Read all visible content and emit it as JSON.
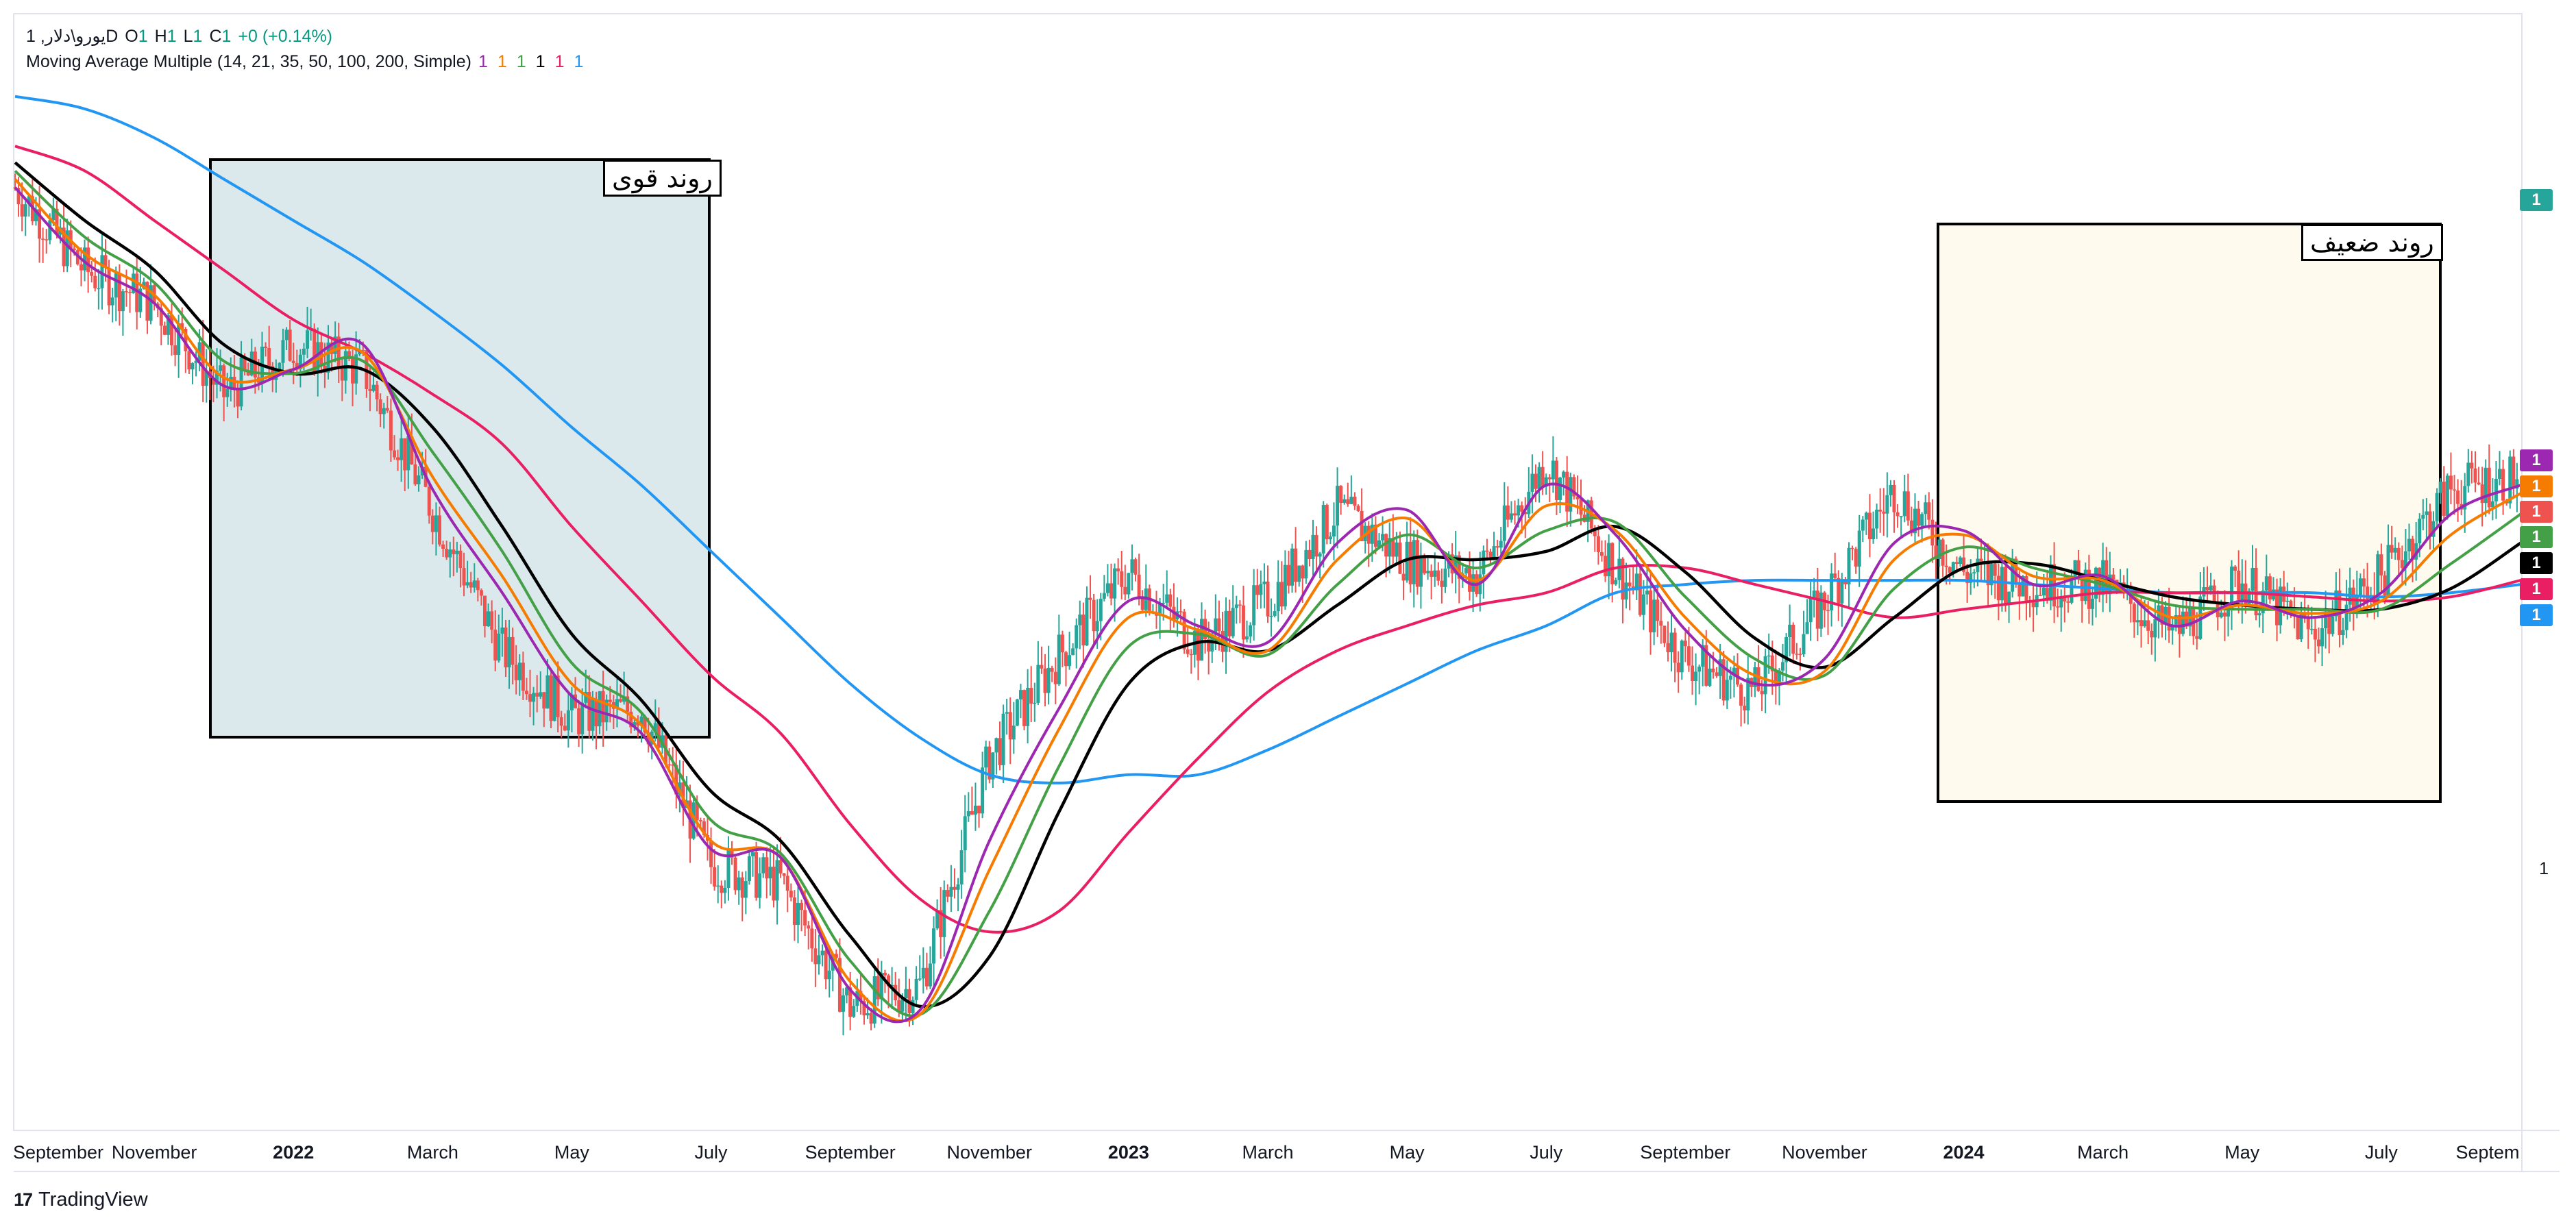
{
  "legend": {
    "symbol": "1 ,یورو\\دلارD",
    "o_label": "O",
    "o_value": "1",
    "h_label": "H",
    "h_value": "1",
    "l_label": "L",
    "l_value": "1",
    "c_label": "C",
    "c_value": "1",
    "change": "+0 (+0.14%)",
    "indicator": "Moving Average Multiple (14, 21, 35, 50, 100, 200, Simple)",
    "indicator_values": [
      {
        "text": "1",
        "color": "#9c27b0"
      },
      {
        "text": "1",
        "color": "#f57c00"
      },
      {
        "text": "1",
        "color": "#43a047"
      },
      {
        "text": "1",
        "color": "#000000"
      },
      {
        "text": "1",
        "color": "#e91e63"
      },
      {
        "text": "1",
        "color": "#2196f3"
      }
    ]
  },
  "annotations": {
    "strong_trend": "روند قوی",
    "weak_trend": "روند ضعیف"
  },
  "price_scale": {
    "labels": [
      {
        "text": "1",
        "color": "#26a69a"
      },
      {
        "text": "1",
        "color": "#9c27b0"
      },
      {
        "text": "1",
        "color": "#f57c00"
      },
      {
        "text": "1",
        "color": "#ef5350"
      },
      {
        "text": "1",
        "color": "#43a047"
      },
      {
        "text": "1",
        "color": "#000000"
      },
      {
        "text": "1",
        "color": "#e91e63"
      },
      {
        "text": "1",
        "color": "#2196f3"
      }
    ],
    "plain_label": "1"
  },
  "branding": "TradingView",
  "chart_data": {
    "type": "line",
    "title": "",
    "xlabel": "",
    "ylabel": "",
    "x": [
      "2021-09",
      "2021-10",
      "2021-11",
      "2021-12",
      "2022-01",
      "2022-02",
      "2022-03",
      "2022-04",
      "2022-05",
      "2022-06",
      "2022-07",
      "2022-08",
      "2022-09",
      "2022-10",
      "2022-11",
      "2022-12",
      "2023-01",
      "2023-02",
      "2023-03",
      "2023-04",
      "2023-05",
      "2023-06",
      "2023-07",
      "2023-08",
      "2023-09",
      "2023-10",
      "2023-11",
      "2023-12",
      "2024-01",
      "2024-02",
      "2024-03",
      "2024-04",
      "2024-05",
      "2024-06",
      "2024-07",
      "2024-08",
      "2024-09"
    ],
    "x_tick_labels": [
      {
        "label": "September",
        "date": "2021-09",
        "bold": false
      },
      {
        "label": "November",
        "date": "2021-11",
        "bold": false
      },
      {
        "label": "2022",
        "date": "2022-01",
        "bold": true
      },
      {
        "label": "March",
        "date": "2022-03",
        "bold": false
      },
      {
        "label": "May",
        "date": "2022-05",
        "bold": false
      },
      {
        "label": "July",
        "date": "2022-07",
        "bold": false
      },
      {
        "label": "September",
        "date": "2022-09",
        "bold": false
      },
      {
        "label": "November",
        "date": "2022-11",
        "bold": false
      },
      {
        "label": "2023",
        "date": "2023-01",
        "bold": true
      },
      {
        "label": "March",
        "date": "2023-03",
        "bold": false
      },
      {
        "label": "May",
        "date": "2023-05",
        "bold": false
      },
      {
        "label": "July",
        "date": "2023-07",
        "bold": false
      },
      {
        "label": "September",
        "date": "2023-09",
        "bold": false
      },
      {
        "label": "November",
        "date": "2023-11",
        "bold": false
      },
      {
        "label": "2024",
        "date": "2024-01",
        "bold": true
      },
      {
        "label": "March",
        "date": "2024-03",
        "bold": false
      },
      {
        "label": "May",
        "date": "2024-05",
        "bold": false
      },
      {
        "label": "July",
        "date": "2024-07",
        "bold": false
      },
      {
        "label": "Septem",
        "date": "2024-09",
        "bold": false
      }
    ],
    "series": [
      {
        "period": 14,
        "color": "#9c27b0",
        "values": [
          1.178,
          1.16,
          1.15,
          1.13,
          1.134,
          1.14,
          1.105,
          1.08,
          1.055,
          1.046,
          1.018,
          1.016,
          0.984,
          0.979,
          1.02,
          1.052,
          1.078,
          1.072,
          1.068,
          1.092,
          1.1,
          1.082,
          1.106,
          1.094,
          1.071,
          1.058,
          1.064,
          1.092,
          1.095,
          1.082,
          1.084,
          1.072,
          1.078,
          1.074,
          1.08,
          1.099,
          1.106
        ]
      },
      {
        "period": 21,
        "color": "#f57c00",
        "values": [
          1.18,
          1.162,
          1.152,
          1.132,
          1.134,
          1.138,
          1.108,
          1.084,
          1.058,
          1.048,
          1.02,
          1.016,
          0.986,
          0.978,
          1.013,
          1.047,
          1.074,
          1.071,
          1.066,
          1.088,
          1.098,
          1.083,
          1.101,
          1.095,
          1.074,
          1.06,
          1.061,
          1.088,
          1.094,
          1.084,
          1.083,
          1.074,
          1.077,
          1.075,
          1.078,
          1.094,
          1.104
        ]
      },
      {
        "period": 35,
        "color": "#43a047",
        "values": [
          1.182,
          1.166,
          1.155,
          1.136,
          1.133,
          1.136,
          1.114,
          1.09,
          1.063,
          1.051,
          1.025,
          1.017,
          0.991,
          0.978,
          1.003,
          1.038,
          1.067,
          1.07,
          1.065,
          1.082,
          1.094,
          1.086,
          1.095,
          1.097,
          1.079,
          1.064,
          1.06,
          1.081,
          1.091,
          1.086,
          1.082,
          1.077,
          1.076,
          1.076,
          1.076,
          1.087,
          1.099
        ]
      },
      {
        "period": 50,
        "color": "#000000",
        "values": [
          1.184,
          1.17,
          1.158,
          1.14,
          1.133,
          1.134,
          1.12,
          1.096,
          1.07,
          1.054,
          1.032,
          1.02,
          0.997,
          0.98,
          0.992,
          1.027,
          1.058,
          1.068,
          1.066,
          1.077,
          1.088,
          1.088,
          1.09,
          1.096,
          1.085,
          1.069,
          1.062,
          1.074,
          1.086,
          1.087,
          1.083,
          1.079,
          1.077,
          1.076,
          1.076,
          1.081,
          1.092
        ]
      },
      {
        "period": 100,
        "color": "#e91e63",
        "values": [
          1.188,
          1.182,
          1.17,
          1.158,
          1.146,
          1.138,
          1.128,
          1.116,
          1.096,
          1.078,
          1.06,
          1.046,
          1.024,
          1.006,
          0.998,
          1.003,
          1.022,
          1.04,
          1.056,
          1.066,
          1.072,
          1.077,
          1.08,
          1.086,
          1.086,
          1.082,
          1.078,
          1.074,
          1.076,
          1.078,
          1.08,
          1.08,
          1.08,
          1.079,
          1.078,
          1.079,
          1.083
        ]
      },
      {
        "period": 200,
        "color": "#2196f3",
        "values": [
          1.2,
          1.197,
          1.19,
          1.18,
          1.17,
          1.16,
          1.148,
          1.135,
          1.12,
          1.106,
          1.09,
          1.074,
          1.058,
          1.045,
          1.036,
          1.034,
          1.036,
          1.036,
          1.042,
          1.05,
          1.058,
          1.066,
          1.072,
          1.08,
          1.082,
          1.083,
          1.083,
          1.083,
          1.083,
          1.082,
          1.081,
          1.08,
          1.08,
          1.08,
          1.079,
          1.08,
          1.082
        ]
      }
    ],
    "ylim": [
      0.95,
      1.22
    ],
    "candles_close_approx": [
      1.178,
      1.158,
      1.15,
      1.128,
      1.14,
      1.134,
      1.1,
      1.066,
      1.05,
      1.052,
      1.014,
      1.01,
      0.98,
      0.985,
      1.04,
      1.065,
      1.085,
      1.068,
      1.078,
      1.1,
      1.088,
      1.084,
      1.112,
      1.086,
      1.064,
      1.056,
      1.078,
      1.105,
      1.085,
      1.082,
      1.082,
      1.07,
      1.083,
      1.07,
      1.084,
      1.105,
      1.108
    ],
    "legend_placement": "top-left",
    "grid": false
  }
}
